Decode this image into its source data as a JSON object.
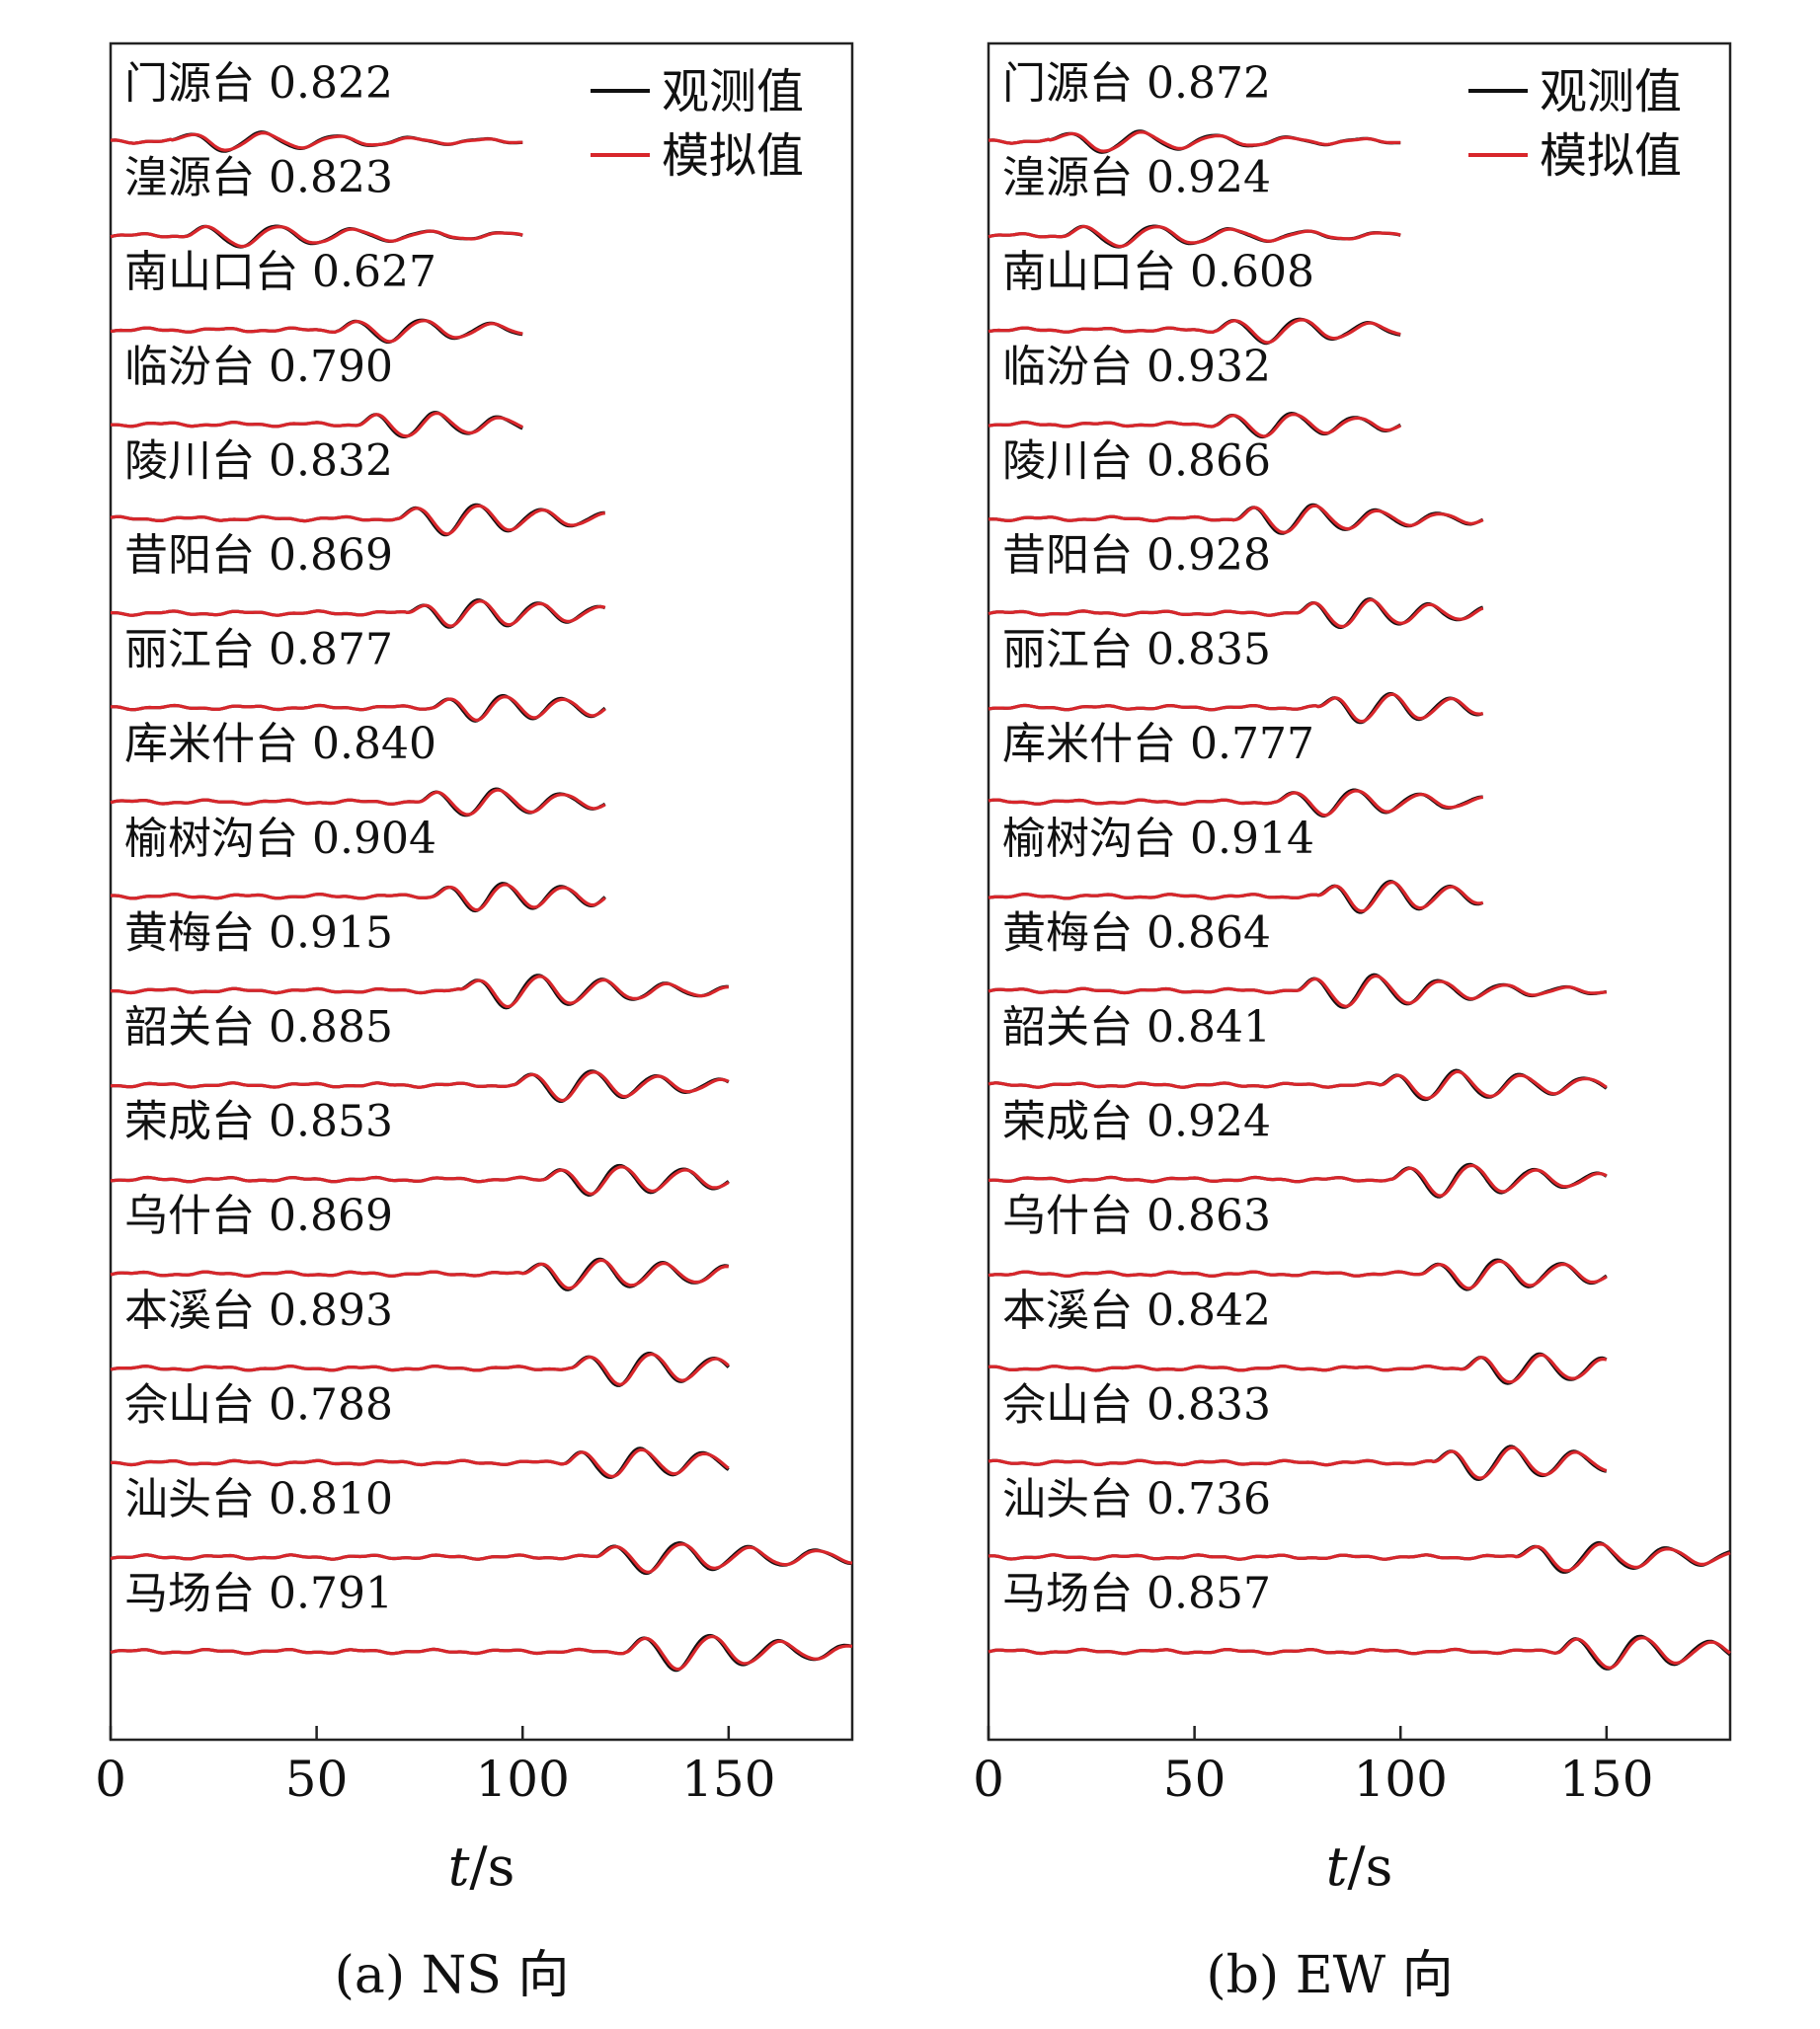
{
  "legend": {
    "observed": "观测值",
    "simulated": "模拟值"
  },
  "colors": {
    "observed": "#111111",
    "simulated": "#d8262b",
    "axis": "#222222"
  },
  "chart_data": [
    {
      "type": "line",
      "caption": "(a) NS 向",
      "xlabel_italic": "t",
      "xlabel_unit": "/s",
      "xlim": [
        0,
        180
      ],
      "xticks": [
        "0",
        "50",
        "100",
        "150"
      ],
      "grid": false,
      "legend_position": "top-right",
      "series": [
        {
          "name": "观测值"
        },
        {
          "name": "模拟值"
        }
      ],
      "stations": [
        {
          "name": "门源台",
          "cc": "0.822",
          "end": 100,
          "arrival": 15,
          "freq": 0.055,
          "amp": 0.45
        },
        {
          "name": "湟源台",
          "cc": "0.823",
          "end": 100,
          "arrival": 18,
          "freq": 0.055,
          "amp": 0.5
        },
        {
          "name": "南山口台",
          "cc": "0.627",
          "end": 100,
          "arrival": 55,
          "freq": 0.06,
          "amp": 0.55
        },
        {
          "name": "临汾台",
          "cc": "0.790",
          "end": 100,
          "arrival": 60,
          "freq": 0.065,
          "amp": 0.6
        },
        {
          "name": "陵川台",
          "cc": "0.832",
          "end": 120,
          "arrival": 70,
          "freq": 0.065,
          "amp": 0.7
        },
        {
          "name": "昔阳台",
          "cc": "0.869",
          "end": 120,
          "arrival": 72,
          "freq": 0.07,
          "amp": 0.65
        },
        {
          "name": "丽江台",
          "cc": "0.877",
          "end": 120,
          "arrival": 78,
          "freq": 0.07,
          "amp": 0.65
        },
        {
          "name": "库米什台",
          "cc": "0.840",
          "end": 120,
          "arrival": 75,
          "freq": 0.065,
          "amp": 0.6
        },
        {
          "name": "榆树沟台",
          "cc": "0.904",
          "end": 120,
          "arrival": 78,
          "freq": 0.07,
          "amp": 0.7
        },
        {
          "name": "黄梅台",
          "cc": "0.915",
          "end": 150,
          "arrival": 85,
          "freq": 0.065,
          "amp": 0.75
        },
        {
          "name": "韶关台",
          "cc": "0.885",
          "end": 150,
          "arrival": 98,
          "freq": 0.065,
          "amp": 0.7
        },
        {
          "name": "荣成台",
          "cc": "0.853",
          "end": 150,
          "arrival": 105,
          "freq": 0.065,
          "amp": 0.75
        },
        {
          "name": "乌什台",
          "cc": "0.869",
          "end": 150,
          "arrival": 100,
          "freq": 0.065,
          "amp": 0.75
        },
        {
          "name": "本溪台",
          "cc": "0.893",
          "end": 150,
          "arrival": 112,
          "freq": 0.065,
          "amp": 0.75
        },
        {
          "name": "佘山台",
          "cc": "0.788",
          "end": 150,
          "arrival": 110,
          "freq": 0.065,
          "amp": 0.75
        },
        {
          "name": "汕头台",
          "cc": "0.810",
          "end": 180,
          "arrival": 118,
          "freq": 0.06,
          "amp": 0.75
        },
        {
          "name": "马场台",
          "cc": "0.791",
          "end": 180,
          "arrival": 125,
          "freq": 0.06,
          "amp": 0.85
        }
      ]
    },
    {
      "type": "line",
      "caption": "(b) EW 向",
      "xlabel_italic": "t",
      "xlabel_unit": "/s",
      "xlim": [
        0,
        180
      ],
      "xticks": [
        "0",
        "50",
        "100",
        "150"
      ],
      "grid": false,
      "legend_position": "top-right",
      "series": [
        {
          "name": "观测值"
        },
        {
          "name": "模拟值"
        }
      ],
      "stations": [
        {
          "name": "门源台",
          "cc": "0.872",
          "end": 100,
          "arrival": 15,
          "freq": 0.055,
          "amp": 0.5
        },
        {
          "name": "湟源台",
          "cc": "0.924",
          "end": 100,
          "arrival": 18,
          "freq": 0.055,
          "amp": 0.5
        },
        {
          "name": "南山口台",
          "cc": "0.608",
          "end": 100,
          "arrival": 55,
          "freq": 0.06,
          "amp": 0.6
        },
        {
          "name": "临汾台",
          "cc": "0.932",
          "end": 100,
          "arrival": 55,
          "freq": 0.065,
          "amp": 0.6
        },
        {
          "name": "陵川台",
          "cc": "0.866",
          "end": 120,
          "arrival": 60,
          "freq": 0.065,
          "amp": 0.7
        },
        {
          "name": "昔阳台",
          "cc": "0.928",
          "end": 120,
          "arrival": 75,
          "freq": 0.07,
          "amp": 0.65
        },
        {
          "name": "丽江台",
          "cc": "0.835",
          "end": 120,
          "arrival": 80,
          "freq": 0.07,
          "amp": 0.65
        },
        {
          "name": "库米什台",
          "cc": "0.777",
          "end": 120,
          "arrival": 70,
          "freq": 0.065,
          "amp": 0.6
        },
        {
          "name": "榆树沟台",
          "cc": "0.914",
          "end": 120,
          "arrival": 80,
          "freq": 0.07,
          "amp": 0.7
        },
        {
          "name": "黄梅台",
          "cc": "0.864",
          "end": 150,
          "arrival": 75,
          "freq": 0.065,
          "amp": 0.75
        },
        {
          "name": "韶关台",
          "cc": "0.841",
          "end": 150,
          "arrival": 95,
          "freq": 0.065,
          "amp": 0.7
        },
        {
          "name": "荣成台",
          "cc": "0.924",
          "end": 150,
          "arrival": 98,
          "freq": 0.065,
          "amp": 0.75
        },
        {
          "name": "乌什台",
          "cc": "0.863",
          "end": 150,
          "arrival": 105,
          "freq": 0.065,
          "amp": 0.75
        },
        {
          "name": "本溪台",
          "cc": "0.842",
          "end": 150,
          "arrival": 115,
          "freq": 0.065,
          "amp": 0.75
        },
        {
          "name": "佘山台",
          "cc": "0.833",
          "end": 150,
          "arrival": 108,
          "freq": 0.065,
          "amp": 0.75
        },
        {
          "name": "汕头台",
          "cc": "0.736",
          "end": 180,
          "arrival": 128,
          "freq": 0.06,
          "amp": 0.75
        },
        {
          "name": "马场台",
          "cc": "0.857",
          "end": 180,
          "arrival": 138,
          "freq": 0.06,
          "amp": 0.85
        }
      ]
    }
  ]
}
